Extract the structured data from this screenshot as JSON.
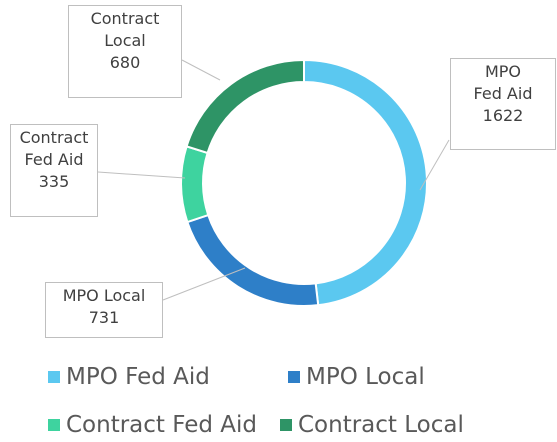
{
  "chart_data": {
    "type": "pie",
    "categories": [
      "MPO Fed Aid",
      "MPO Local",
      "Contract Fed Aid",
      "Contract Local"
    ],
    "values": [
      1622,
      731,
      335,
      680
    ],
    "colors": [
      "#5bc8f0",
      "#2e7fc8",
      "#3ed39f",
      "#2e9466"
    ],
    "donut": true,
    "legend": "bottom"
  }
}
